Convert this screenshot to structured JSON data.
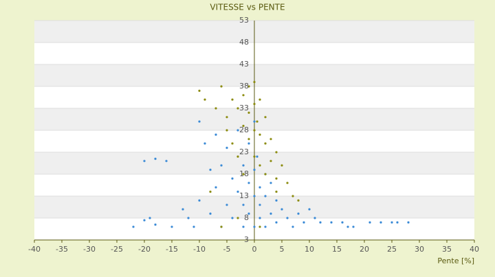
{
  "chart_data": {
    "type": "scatter",
    "title": "VITESSE vs PENTE",
    "x_label": "Pente [%]",
    "xlim": [
      -40,
      40
    ],
    "xticks": [
      -40,
      -35,
      -30,
      -25,
      -20,
      -15,
      -10,
      -5,
      0,
      5,
      10,
      15,
      20,
      25,
      30,
      35,
      40
    ],
    "ylim": [
      3,
      53
    ],
    "yticks": [
      3,
      8,
      13,
      18,
      23,
      28,
      33,
      38,
      43,
      48,
      53
    ],
    "grid": true,
    "series": [
      {
        "color": "#3a8ad6",
        "x": [
          -22,
          -20,
          -19,
          -18,
          -20,
          -18,
          -16,
          -15,
          -13,
          -12,
          -11,
          -10,
          -10,
          -9,
          -8,
          -8,
          -7,
          -7,
          -6,
          -6,
          -5,
          -5,
          -4,
          -4,
          -3,
          -3,
          -2,
          -2,
          -2,
          -1,
          -1,
          -1,
          0,
          0,
          0,
          0,
          0.5,
          1,
          1,
          1,
          2,
          2,
          2,
          3,
          3,
          4,
          4,
          5,
          6,
          7,
          8,
          9,
          10,
          11,
          12,
          14,
          16,
          18,
          21,
          23,
          25,
          26,
          28,
          17
        ],
        "values": [
          6,
          7.5,
          8,
          6.5,
          21,
          21.5,
          21,
          6,
          10,
          8,
          6,
          12,
          30,
          25,
          19,
          9,
          15,
          27,
          6,
          20,
          11,
          24,
          17,
          8,
          14,
          28,
          6,
          20,
          11,
          25,
          16,
          9,
          6,
          13,
          19,
          30,
          22,
          8,
          15,
          11,
          6,
          18,
          13,
          9,
          16,
          7,
          12,
          10,
          8,
          6,
          9,
          7,
          10,
          8,
          7,
          7,
          7,
          6,
          7,
          7,
          7,
          7,
          7,
          6
        ]
      },
      {
        "color": "#8c8c10",
        "x": [
          -10,
          -9,
          -7,
          -6,
          -5,
          -5,
          -4,
          -4,
          -3,
          -3,
          -2,
          -2,
          -2,
          -1,
          -1,
          -1,
          0,
          0,
          0,
          0,
          0.5,
          1,
          1,
          1,
          2,
          2,
          2,
          3,
          3,
          4,
          4,
          5,
          6,
          7,
          8,
          -6,
          -3,
          1,
          4,
          -8
        ],
        "values": [
          37,
          35,
          33,
          38,
          31,
          28,
          35,
          25,
          33,
          22,
          36,
          29,
          18,
          38,
          32,
          26,
          39,
          34,
          28,
          22,
          30,
          35,
          27,
          20,
          31,
          25,
          18,
          26,
          21,
          23,
          17,
          20,
          16,
          13,
          12,
          6,
          8,
          6,
          14,
          14
        ]
      }
    ]
  }
}
